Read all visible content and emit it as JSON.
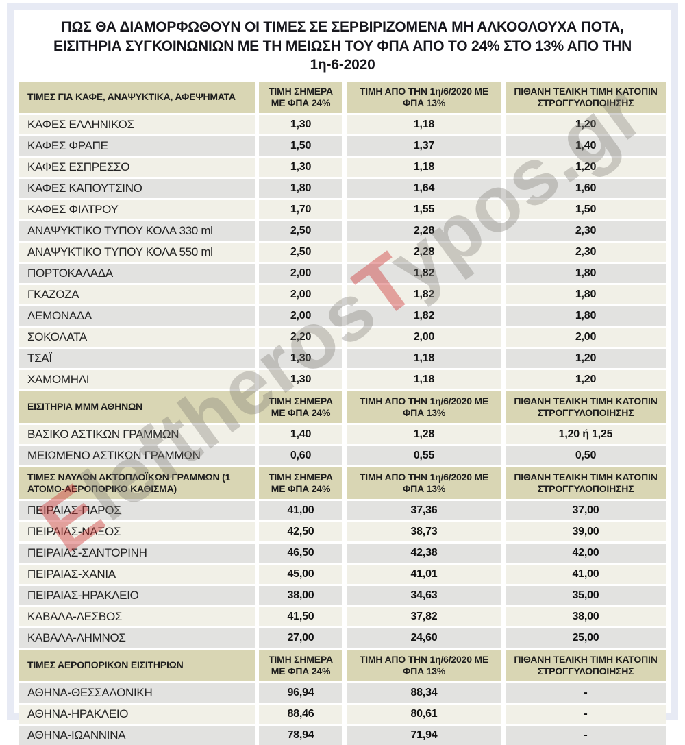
{
  "title": "ΠΩΣ ΘΑ ΔΙΑΜΟΡΦΩΘΟΥΝ ΟΙ ΤΙΜΕΣ ΣΕ ΣΕΡΒΙΡΙΖΟΜΕΝΑ ΜΗ ΑΛΚΟΟΛΟΥΧΑ ΠΟΤΑ, ΕΙΣΙΤΗΡΙΑ ΣΥΓΚΟΙΝΩΝΙΩΝ ΜΕ ΤΗ ΜΕΙΩΣΗ ΤΟΥ ΦΠΑ ΑΠΟ ΤΟ 24% ΣΤΟ 13% ΑΠΟ ΤΗΝ 1η-6-2020",
  "watermark": {
    "text": "EleftherosTypos.gr",
    "segments": [
      {
        "text": "E",
        "accent": true
      },
      {
        "text": "leftheros",
        "accent": false
      },
      {
        "text": "T",
        "accent": true
      },
      {
        "text": "ypos.gr",
        "accent": false
      }
    ],
    "accent_color": "#ce3232",
    "base_color": "#7a7771"
  },
  "colors": {
    "section_header_bg": "#d9d6b4",
    "row_light": "#f1f0e7",
    "row_gray": "#e2e2e0",
    "card_border": "#e7eaf4",
    "title_text": "#17171d"
  },
  "chart_data": [
    {
      "type": "table",
      "title": "ΤΙΜΕΣ ΓΙΑ ΚΑΦΕ, ΑΝΑΨΥΚΤΙΚΑ, ΑΦΕΨΗΜΑΤΑ",
      "columns": [
        "ΤΙΜΗ ΣΗΜΕΡΑ ΜΕ ΦΠΑ 24%",
        "ΤΙΜΗ ΑΠΟ ΤΗΝ 1η/6/2020 ΜΕ ΦΠΑ 13%",
        "ΠΙΘΑΝΗ ΤΕΛΙΚΗ ΤΙΜΗ ΚΑΤΟΠΙΝ ΣΤΡΟΓΓΥΛΟΠΟΙΗΣΗΣ"
      ],
      "first_row_shade": "light",
      "rows": [
        [
          "ΚΑΦΕΣ ΕΛΛΗΝΙΚΟΣ",
          "1,30",
          "1,18",
          "1,20"
        ],
        [
          "ΚΑΦΕΣ ΦΡΑΠΕ",
          "1,50",
          "1,37",
          "1,40"
        ],
        [
          "ΚΑΦΕΣ ΕΣΠΡΕΣΣΟ",
          "1,30",
          "1,18",
          "1,20"
        ],
        [
          "ΚΑΦΕΣ ΚΑΠΟΥΤΣΙΝΟ",
          "1,80",
          "1,64",
          "1,60"
        ],
        [
          "ΚΑΦΕΣ ΦΙΛΤΡΟΥ",
          "1,70",
          "1,55",
          "1,50"
        ],
        [
          "ΑΝΑΨΥΚΤΙΚΟ ΤΥΠΟΥ ΚΟΛΑ 330 ml",
          "2,50",
          "2,28",
          "2,30"
        ],
        [
          "ΑΝΑΨΥΚΤΙΚΟ ΤΥΠΟΥ ΚΟΛΑ 550 ml",
          "2,50",
          "2,28",
          "2,30"
        ],
        [
          "ΠΟΡΤΟΚΑΛΑΔΑ",
          "2,00",
          "1,82",
          "1,80"
        ],
        [
          "ΓΚΑΖΟΖΑ",
          "2,00",
          "1,82",
          "1,80"
        ],
        [
          "ΛΕΜΟΝΑΔΑ",
          "2,00",
          "1,82",
          "1,80"
        ],
        [
          "ΣΟΚΟΛΑΤΑ",
          "2,20",
          "2,00",
          "2,00"
        ],
        [
          "ΤΣΑΪ",
          "1,30",
          "1,18",
          "1,20"
        ],
        [
          "ΧΑΜΟΜΗΛΙ",
          "1,30",
          "1,18",
          "1,20"
        ]
      ]
    },
    {
      "type": "table",
      "title": "ΕΙΣΙΤΗΡΙΑ ΜΜΜ ΑΘΗΝΩΝ",
      "columns": [
        "ΤΙΜΗ ΣΗΜΕΡΑ ΜΕ ΦΠΑ 24%",
        "ΤΙΜΗ ΑΠΟ ΤΗΝ 1η/6/2020 ΜΕ ΦΠΑ 13%",
        "ΠΙΘΑΝΗ ΤΕΛΙΚΗ ΤΙΜΗ ΚΑΤΟΠΙΝ ΣΤΡΟΓΓΥΛΟΠΟΙΗΣΗΣ"
      ],
      "first_row_shade": "light",
      "rows": [
        [
          "ΒΑΣΙΚΟ ΑΣΤΙΚΩΝ ΓΡΑΜΜΩΝ",
          "1,40",
          "1,28",
          "1,20 ή 1,25"
        ],
        [
          "ΜΕΙΩΜΕΝΟ ΑΣΤΙΚΩΝ ΓΡΑΜΜΩΝ",
          "0,60",
          "0,55",
          "0,50"
        ]
      ]
    },
    {
      "type": "table",
      "title": "ΤΙΜΕΣ ΝΑΥΛΩΝ ΑΚΤΟΠΛΟΪΚΩΝ ΓΡΑΜΜΩΝ (1 ΑΤΟΜΟ-ΑΕΡΟΠΟΡΙΚΟ ΚΑΘΙΣΜΑ)",
      "columns": [
        "ΤΙΜΗ ΣΗΜΕΡΑ ΜΕ ΦΠΑ 24%",
        "ΤΙΜΗ ΑΠΟ ΤΗΝ 1η/6/2020 ΜΕ ΦΠΑ 13%",
        "ΠΙΘΑΝΗ ΤΕΛΙΚΗ ΤΙΜΗ ΚΑΤΟΠΙΝ ΣΤΡΟΓΓΥΛΟΠΟΙΗΣΗΣ"
      ],
      "first_row_shade": "gray",
      "rows": [
        [
          "ΠΕΙΡΑΙΑΣ-ΠΑΡΟΣ",
          "41,00",
          "37,36",
          "37,00"
        ],
        [
          "ΠΕΙΡΑΙΑΣ-ΝΑΞΟΣ",
          "42,50",
          "38,73",
          "39,00"
        ],
        [
          "ΠΕΙΡΑΙΑΣ-ΣΑΝΤΟΡΙΝΗ",
          "46,50",
          "42,38",
          "42,00"
        ],
        [
          "ΠΕΙΡΑΙΑΣ-ΧΑΝΙΑ",
          "45,00",
          "41,01",
          "41,00"
        ],
        [
          "ΠΕΙΡΑΙΑΣ-ΗΡΑΚΛΕΙΟ",
          "38,00",
          "34,63",
          "35,00"
        ],
        [
          "ΚΑΒΑΛΑ-ΛΕΣΒΟΣ",
          "41,50",
          "37,82",
          "38,00"
        ],
        [
          "ΚΑΒΑΛΑ-ΛΗΜΝΟΣ",
          "27,00",
          "24,60",
          "25,00"
        ]
      ]
    },
    {
      "type": "table",
      "title": "ΤΙΜΕΣ ΑΕΡΟΠΟΡΙΚΩΝ ΕΙΣΙΤΗΡΙΩΝ",
      "columns": [
        "ΤΙΜΗ ΣΗΜΕΡΑ ΜΕ ΦΠΑ 24%",
        "ΤΙΜΗ ΑΠΟ ΤΗΝ 1η/6/2020 ΜΕ ΦΠΑ 13%",
        "ΠΙΘΑΝΗ ΤΕΛΙΚΗ ΤΙΜΗ ΚΑΤΟΠΙΝ ΣΤΡΟΓΓΥΛΟΠΟΙΗΣΗΣ"
      ],
      "first_row_shade": "gray",
      "rows": [
        [
          "ΑΘΗΝΑ-ΘΕΣΣΑΛΟΝΙΚΗ",
          "96,94",
          "88,34",
          "-"
        ],
        [
          "ΑΘΗΝΑ-ΗΡΑΚΛΕΙΟ",
          "88,46",
          "80,61",
          "-"
        ],
        [
          "ΑΘΗΝΑ-ΙΩΑΝΝΙΝΑ",
          "78,94",
          "71,94",
          "-"
        ]
      ]
    }
  ]
}
